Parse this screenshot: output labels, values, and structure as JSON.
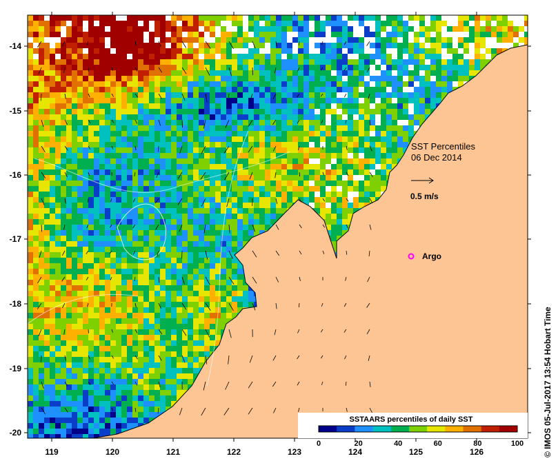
{
  "map": {
    "title_lines": [
      "SST Percentiles",
      "06 Dec 2014"
    ],
    "vector_scale_label": "0.5 m/s",
    "argo_label": "Argo",
    "credit": "© IMOS 05-Jul-2017 13:54 Hobart Time",
    "lon_ticks": [
      "119",
      "120",
      "121",
      "122",
      "123",
      "124",
      "125",
      "126"
    ],
    "lat_ticks": [
      "-14",
      "-15",
      "-16",
      "-17",
      "-18",
      "-19",
      "-20"
    ],
    "colorbar": {
      "title": "SSTAARS percentiles of daily SST",
      "ticks": [
        "0",
        "20",
        "40",
        "60",
        "80",
        "100"
      ],
      "colors": [
        "#00008b",
        "#0a3dc8",
        "#1e90ff",
        "#00c0c0",
        "#00b050",
        "#7fd000",
        "#e6e600",
        "#ffb000",
        "#e07000",
        "#c02000",
        "#a00000"
      ]
    },
    "colors": {
      "land": "#fdc593",
      "argo": "#ff00ff",
      "coast": "#000000"
    }
  }
}
